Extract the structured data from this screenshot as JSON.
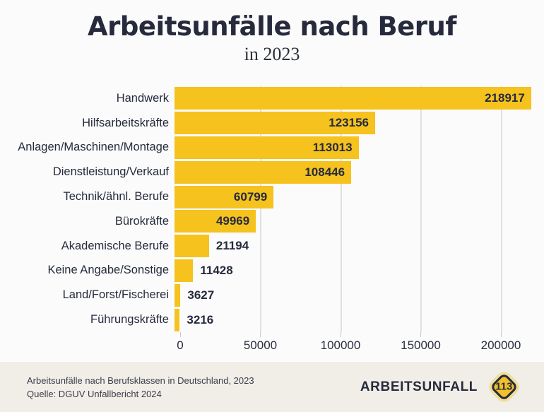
{
  "page": {
    "background": "#FBFBFB",
    "text_color": "#262A3C"
  },
  "header": {
    "title": "Arbeitsunfälle nach Beruf",
    "subtitle": "in 2023"
  },
  "chart_data": {
    "type": "bar",
    "orientation": "horizontal",
    "title": "Arbeitsunfälle nach Beruf in 2023",
    "categories": [
      "Handwerk",
      "Hilfsarbeitskräfte",
      "Anlagen/Maschinen/Montage",
      "Dienstleistung/Verkauf",
      "Technik/ähnl. Berufe",
      "Bürokräfte",
      "Akademische Berufe",
      "Keine Angabe/Sonstige",
      "Land/Forst/Fischerei",
      "Führungskräfte"
    ],
    "values": [
      218917,
      123156,
      113013,
      108446,
      60799,
      49969,
      21194,
      11428,
      3627,
      3216
    ],
    "value_labels": [
      "218917",
      "123156",
      "113013",
      "108446",
      "60799",
      "49969",
      "21194",
      "11428",
      "3627",
      "3216"
    ],
    "x_ticks": [
      0,
      50000,
      100000,
      150000,
      200000
    ],
    "x_tick_labels": [
      "0",
      "50000",
      "100000",
      "150000",
      "200000"
    ],
    "xlim": [
      0,
      222467
    ],
    "xlabel": "",
    "ylabel": "",
    "legend": "none",
    "grid": "vertical-light",
    "bar_color": "#F5C21E",
    "grid_color": "#E0E0E0",
    "label_color": "#262A3C"
  },
  "footer": {
    "background": "#F1EEE8",
    "caption_line1": "Arbeitsunfälle nach Berufsklassen in Deutschland, 2023",
    "caption_line2": "Quelle: DGUV Unfallbericht 2024",
    "logo": {
      "text": "ARBEITSUNFALL",
      "badge": "113"
    }
  }
}
